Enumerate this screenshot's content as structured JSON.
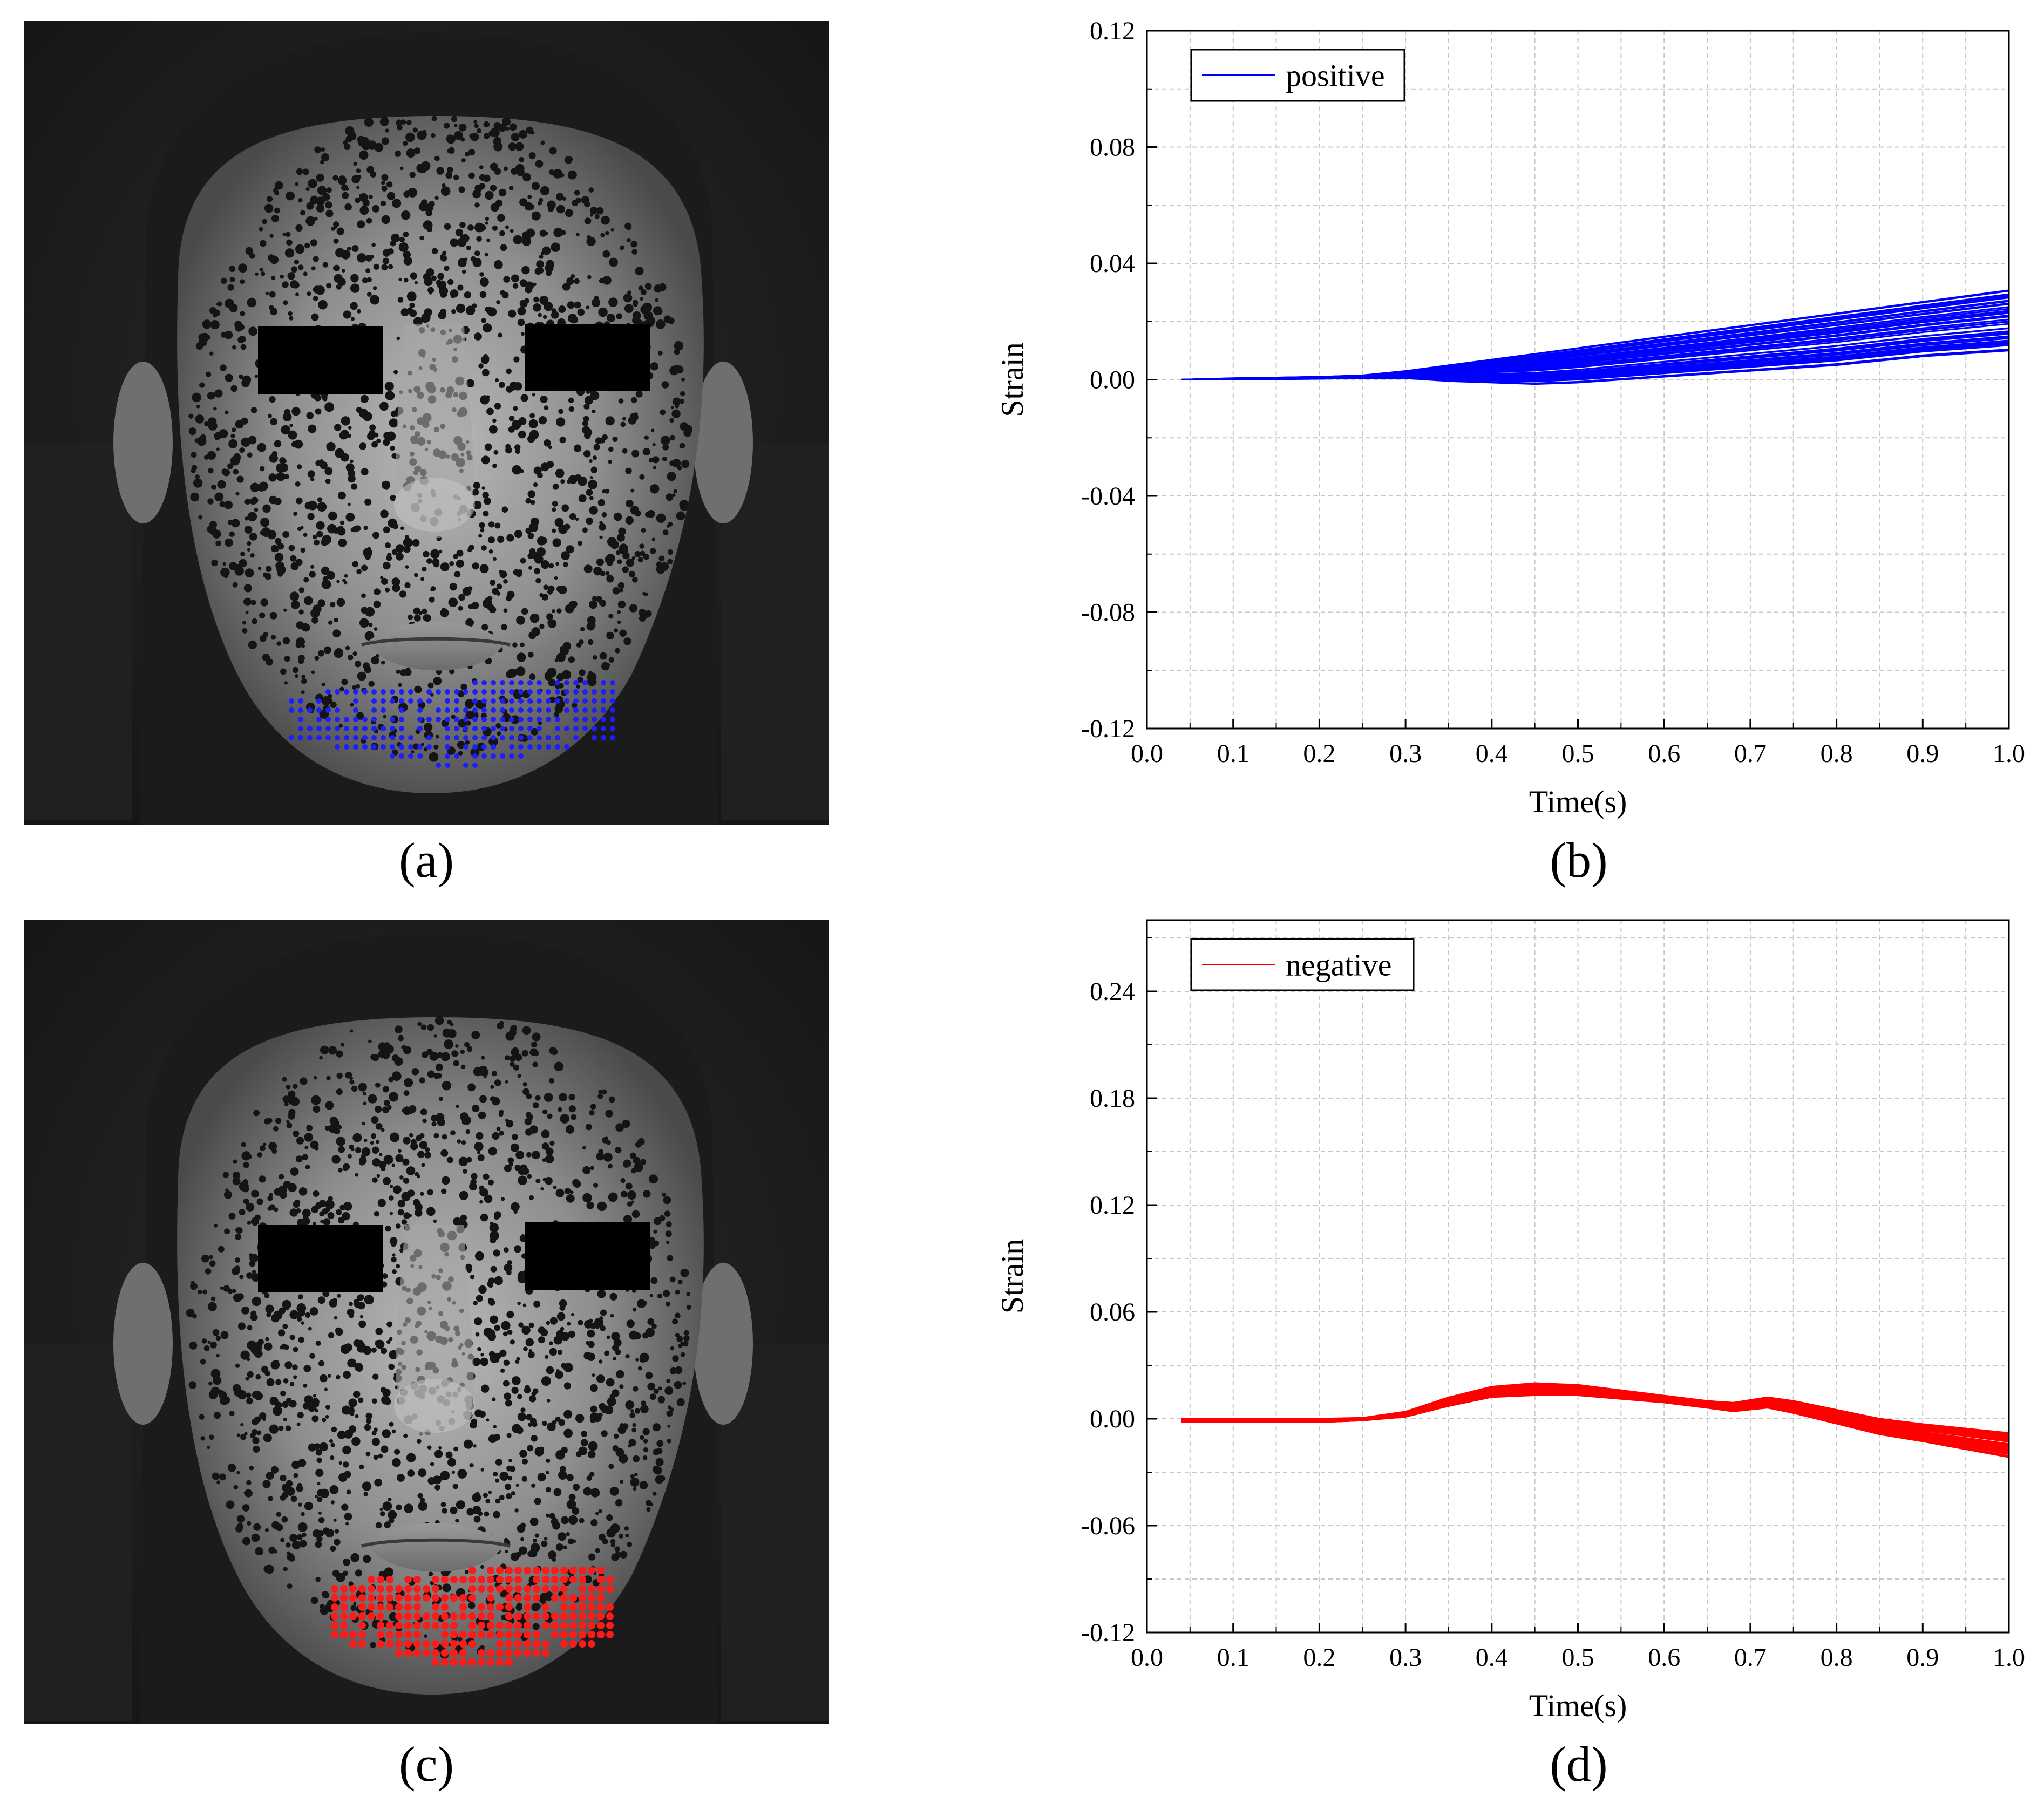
{
  "panels": {
    "a": {
      "label": "(a)",
      "marker_color": "#1d1dff",
      "marker_name": "positive-strain points"
    },
    "c": {
      "label": "(c)",
      "marker_color": "#ff1a1a",
      "marker_name": "negative-strain points"
    }
  },
  "colors": {
    "positive": "#0000ff",
    "negative": "#ff0000",
    "grid": "#c8c8c8"
  },
  "chart_data": [
    {
      "id": "b",
      "panel_label": "(b)",
      "type": "line",
      "xlabel": "Time(s)",
      "ylabel": "Strain",
      "xlim": [
        0.0,
        1.0
      ],
      "ylim": [
        -0.12,
        0.12
      ],
      "xticks": [
        0.0,
        0.1,
        0.2,
        0.3,
        0.4,
        0.5,
        0.6,
        0.7,
        0.8,
        0.9,
        1.0
      ],
      "xtick_labels": [
        "0.0",
        "0.1",
        "0.2",
        "0.3",
        "0.4",
        "0.5",
        "0.6",
        "0.7",
        "0.8",
        "0.9",
        "1.0"
      ],
      "yticks": [
        -0.12,
        -0.08,
        -0.04,
        0.0,
        0.04,
        0.08,
        0.12
      ],
      "ytick_labels": [
        "-0.12",
        "-0.08",
        "-0.04",
        "0.00",
        "0.04",
        "0.08",
        "0.12"
      ],
      "grid": true,
      "legend": {
        "label": "positive",
        "position": "top-left"
      },
      "color": "#0000ff",
      "series_count": 40,
      "x": [
        0.04,
        0.1,
        0.2,
        0.25,
        0.3,
        0.35,
        0.4,
        0.45,
        0.5,
        0.6,
        0.7,
        0.8,
        0.9,
        1.0
      ],
      "envelope_upper": [
        0.0,
        0.0005,
        0.001,
        0.0015,
        0.003,
        0.005,
        0.007,
        0.009,
        0.011,
        0.015,
        0.019,
        0.023,
        0.027,
        0.031
      ],
      "envelope_lower": [
        0.0,
        0.0,
        0.0003,
        0.0005,
        0.0005,
        -0.0005,
        -0.001,
        -0.0015,
        -0.001,
        0.001,
        0.003,
        0.005,
        0.008,
        0.01
      ]
    },
    {
      "id": "d",
      "panel_label": "(d)",
      "type": "line",
      "xlabel": "Time(s)",
      "ylabel": "Strain",
      "xlim": [
        0.0,
        1.0
      ],
      "ylim": [
        -0.12,
        0.28
      ],
      "xticks": [
        0.0,
        0.1,
        0.2,
        0.3,
        0.4,
        0.5,
        0.6,
        0.7,
        0.8,
        0.9,
        1.0
      ],
      "xtick_labels": [
        "0.0",
        "0.1",
        "0.2",
        "0.3",
        "0.4",
        "0.5",
        "0.6",
        "0.7",
        "0.8",
        "0.9",
        "1.0"
      ],
      "yticks": [
        -0.12,
        -0.06,
        0.0,
        0.06,
        0.12,
        0.18,
        0.24
      ],
      "ytick_labels": [
        "-0.12",
        "-0.06",
        "0.00",
        "0.06",
        "0.12",
        "0.18",
        "0.24"
      ],
      "grid": true,
      "legend": {
        "label": "negative",
        "position": "top-left"
      },
      "color": "#ff0000",
      "series_count": 40,
      "x": [
        0.04,
        0.1,
        0.2,
        0.25,
        0.3,
        0.35,
        0.4,
        0.45,
        0.5,
        0.6,
        0.65,
        0.68,
        0.72,
        0.75,
        0.8,
        0.85,
        0.9,
        1.0
      ],
      "envelope_upper": [
        0.0,
        0.0,
        0.0,
        0.0005,
        0.004,
        0.012,
        0.018,
        0.02,
        0.019,
        0.013,
        0.01,
        0.009,
        0.012,
        0.01,
        0.005,
        0.0,
        -0.003,
        -0.008
      ],
      "envelope_lower": [
        -0.002,
        -0.002,
        -0.002,
        -0.001,
        0.001,
        0.007,
        0.012,
        0.013,
        0.013,
        0.009,
        0.006,
        0.004,
        0.006,
        0.003,
        -0.003,
        -0.009,
        -0.013,
        -0.022
      ]
    }
  ]
}
